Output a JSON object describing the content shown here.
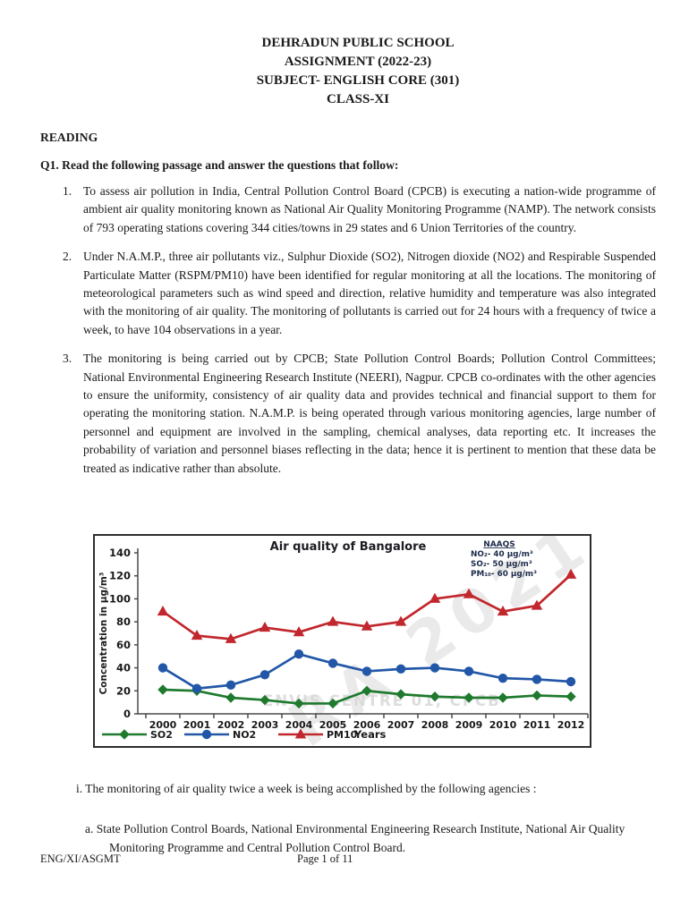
{
  "page": {
    "header": {
      "line1": "DEHRADUN PUBLIC SCHOOL",
      "line2": "ASSIGNMENT (2022-23)",
      "line3": "SUBJECT- ENGLISH CORE (301)",
      "line4": "CLASS-XI"
    },
    "section_heading": "READING",
    "question_heading": "Q1. Read the following passage and answer the questions that follow:",
    "paragraphs": [
      {
        "number": "1.",
        "text": "To assess air pollution in India, Central Pollution Control Board (CPCB) is executing a nation-wide programme of ambient air quality monitoring known as National Air Quality Monitoring Programme (NAMP). The network consists of 793 operating stations covering 344 cities/towns in 29 states and 6 Union Territories of the country."
      },
      {
        "number": "2.",
        "text": "Under N.A.M.P., three air pollutants viz., Sulphur Dioxide (SO2), Nitrogen dioxide (NO2) and Respirable Suspended Particulate Matter (RSPM/PM10) have been identified for regular monitoring at all the locations. The monitoring of meteorological parameters such as wind speed and direction, relative humidity and temperature was also integrated with the monitoring of air quality. The monitoring of pollutants is carried out for 24 hours with a frequency of twice a week, to have 104 observations in a year."
      },
      {
        "number": "3.",
        "text": "The monitoring is being carried out by CPCB; State Pollution Control Boards; Pollution Control Committees; National Environmental Engineering Research Institute (NEERI), Nagpur. CPCB co-ordinates with the other agencies to ensure the uniformity, consistency of air quality data and provides technical and financial support to them for operating the monitoring station. N.A.M.P. is being operated through various monitoring agencies, large number of personnel and equipment are involved in the sampling, chemical analyses, data reporting etc. It increases the probability of variation and personnel biases reflecting in the data; hence it is pertinent to mention that these data be treated as indicative rather than absolute."
      }
    ],
    "question_i": "i. The monitoring of air quality twice a week is being accomplished by the following agencies :",
    "option_a": "a. State Pollution Control Boards, National Environmental Engineering Research Institute, National  Air Quality Monitoring Programme and Central Pollution Control Board.",
    "footer": {
      "left": "ENG/XI/ASGMT",
      "center": "Page 1 of 11"
    }
  },
  "chart_data": {
    "type": "line",
    "title": "Air quality of Bangalore",
    "xlabel": "Years",
    "ylabel": "Concentration in µg/m³",
    "ylim": [
      0,
      140
    ],
    "ytick_step": 20,
    "grid": false,
    "legend_position": "bottom",
    "categories": [
      2000,
      2001,
      2002,
      2003,
      2004,
      2005,
      2006,
      2007,
      2008,
      2009,
      2010,
      2011,
      2012
    ],
    "series": [
      {
        "name": "SO2",
        "color": "#1f7a2e",
        "marker": "diamond",
        "values": [
          21,
          20,
          14,
          12,
          9,
          9,
          20,
          17,
          15,
          14,
          14,
          16,
          15
        ]
      },
      {
        "name": "NO2",
        "color": "#2257a8",
        "marker": "circle",
        "values": [
          40,
          22,
          25,
          34,
          52,
          44,
          37,
          39,
          40,
          37,
          31,
          30,
          28
        ]
      },
      {
        "name": "PM10",
        "color": "#c1272d",
        "marker": "triangle",
        "values": [
          89,
          68,
          65,
          75,
          71,
          80,
          76,
          80,
          100,
          104,
          89,
          94,
          121
        ]
      }
    ],
    "annotation": {
      "title": "NAAQS",
      "lines": [
        "NO₂- 40 µg/m³",
        "SO₂- 50 µg/m³",
        "PM₁₀- 60 µg/m³"
      ]
    },
    "watermark_center": "ENVIS CENTRE 01, CPCB",
    "watermark_diagonal": "RA 2021"
  }
}
